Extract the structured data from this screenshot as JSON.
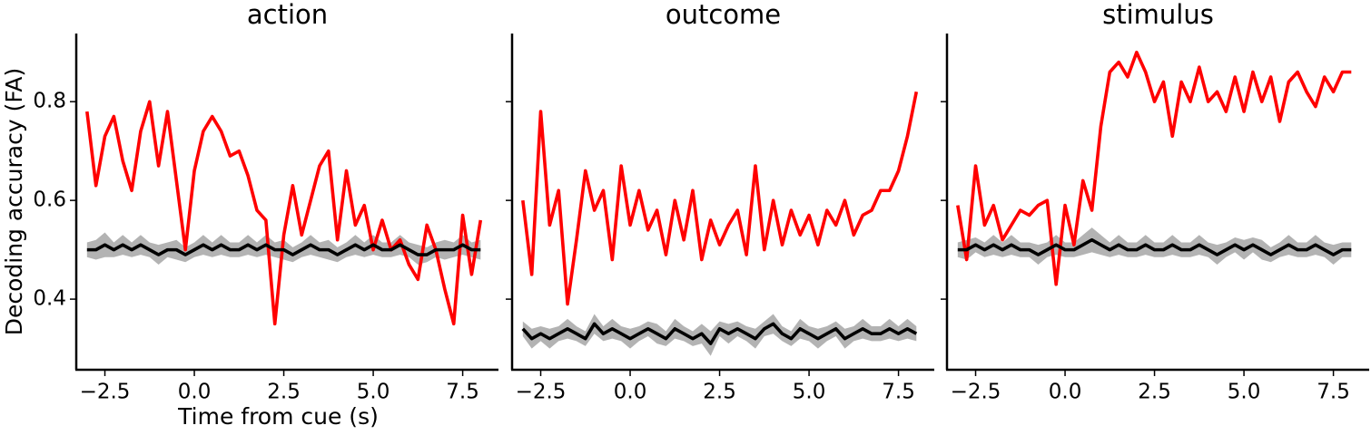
{
  "chart_data": [
    {
      "type": "line",
      "title": "action",
      "xlabel": "Time from cue (s)",
      "ylabel": "Decoding accuracy (FA)",
      "x": [
        -3,
        -2.75,
        -2.5,
        -2.25,
        -2,
        -1.75,
        -1.5,
        -1.25,
        -1,
        -0.75,
        -0.5,
        -0.25,
        0,
        0.25,
        0.5,
        0.75,
        1,
        1.25,
        1.5,
        1.75,
        2,
        2.25,
        2.5,
        2.75,
        3,
        3.25,
        3.5,
        3.75,
        4,
        4.25,
        4.5,
        4.75,
        5,
        5.25,
        5.5,
        5.75,
        6,
        6.25,
        6.5,
        6.75,
        7,
        7.25,
        7.5,
        7.75,
        8
      ],
      "xlim": [
        -3.3,
        8.5
      ],
      "xticks": [
        {
          "value": -2.5,
          "label": "−2.5"
        },
        {
          "value": 0,
          "label": "0.0"
        },
        2.5,
        {
          "value": 5,
          "label": "5.0"
        },
        7.5
      ],
      "ylim": [
        0.257,
        0.938
      ],
      "yticks": [
        0.4,
        0.6,
        0.8
      ],
      "series": [
        {
          "color": "#ff0000",
          "values": [
            0.78,
            0.63,
            0.73,
            0.77,
            0.68,
            0.62,
            0.74,
            0.8,
            0.67,
            0.78,
            0.64,
            0.5,
            0.66,
            0.74,
            0.77,
            0.74,
            0.69,
            0.7,
            0.65,
            0.58,
            0.56,
            0.35,
            0.53,
            0.63,
            0.53,
            0.6,
            0.67,
            0.7,
            0.52,
            0.66,
            0.55,
            0.59,
            0.5,
            0.56,
            0.5,
            0.52,
            0.47,
            0.44,
            0.55,
            0.5,
            0.42,
            0.35,
            0.57,
            0.45,
            0.56
          ]
        },
        {
          "color": "#000000",
          "band_color": "#b3b3b3",
          "values": [
            0.5,
            0.5,
            0.51,
            0.5,
            0.51,
            0.5,
            0.51,
            0.5,
            0.49,
            0.5,
            0.5,
            0.49,
            0.5,
            0.51,
            0.5,
            0.51,
            0.5,
            0.5,
            0.51,
            0.5,
            0.51,
            0.5,
            0.5,
            0.49,
            0.5,
            0.51,
            0.5,
            0.5,
            0.49,
            0.5,
            0.51,
            0.5,
            0.51,
            0.5,
            0.5,
            0.51,
            0.5,
            0.49,
            0.49,
            0.5,
            0.5,
            0.5,
            0.51,
            0.5,
            0.5
          ],
          "errors": [
            0.015,
            0.02,
            0.025,
            0.015,
            0.02,
            0.015,
            0.02,
            0.015,
            0.02,
            0.015,
            0.02,
            0.015,
            0.015,
            0.02,
            0.015,
            0.02,
            0.015,
            0.015,
            0.02,
            0.015,
            0.02,
            0.015,
            0.02,
            0.015,
            0.015,
            0.02,
            0.015,
            0.02,
            0.015,
            0.015,
            0.02,
            0.015,
            0.02,
            0.015,
            0.015,
            0.02,
            0.015,
            0.02,
            0.015,
            0.015,
            0.02,
            0.015,
            0.02,
            0.015,
            0.02
          ]
        }
      ]
    },
    {
      "type": "line",
      "title": "outcome",
      "sharey": true,
      "x": [
        -3,
        -2.75,
        -2.5,
        -2.25,
        -2,
        -1.75,
        -1.5,
        -1.25,
        -1,
        -0.75,
        -0.5,
        -0.25,
        0,
        0.25,
        0.5,
        0.75,
        1,
        1.25,
        1.5,
        1.75,
        2,
        2.25,
        2.5,
        2.75,
        3,
        3.25,
        3.5,
        3.75,
        4,
        4.25,
        4.5,
        4.75,
        5,
        5.25,
        5.5,
        5.75,
        6,
        6.25,
        6.5,
        6.75,
        7,
        7.25,
        7.5,
        7.75,
        8
      ],
      "xlim": [
        -3.3,
        8.5
      ],
      "xticks": [
        {
          "value": -2.5,
          "label": "−2.5"
        },
        {
          "value": 0,
          "label": "0.0"
        },
        2.5,
        {
          "value": 5,
          "label": "5.0"
        },
        7.5
      ],
      "ylim": [
        0.257,
        0.938
      ],
      "yticks": [
        0.4,
        0.6,
        0.8
      ],
      "series": [
        {
          "color": "#ff0000",
          "values": [
            0.6,
            0.45,
            0.78,
            0.55,
            0.62,
            0.39,
            0.52,
            0.66,
            0.58,
            0.62,
            0.48,
            0.67,
            0.55,
            0.62,
            0.54,
            0.58,
            0.49,
            0.6,
            0.52,
            0.62,
            0.48,
            0.56,
            0.51,
            0.55,
            0.58,
            0.49,
            0.67,
            0.5,
            0.6,
            0.51,
            0.58,
            0.53,
            0.57,
            0.51,
            0.58,
            0.55,
            0.6,
            0.53,
            0.57,
            0.58,
            0.62,
            0.62,
            0.66,
            0.73,
            0.82
          ]
        },
        {
          "color": "#000000",
          "band_color": "#b3b3b3",
          "values": [
            0.34,
            0.32,
            0.33,
            0.32,
            0.33,
            0.34,
            0.33,
            0.32,
            0.35,
            0.33,
            0.34,
            0.33,
            0.32,
            0.33,
            0.34,
            0.33,
            0.32,
            0.34,
            0.33,
            0.32,
            0.33,
            0.31,
            0.34,
            0.33,
            0.34,
            0.33,
            0.32,
            0.34,
            0.35,
            0.33,
            0.32,
            0.34,
            0.33,
            0.32,
            0.33,
            0.34,
            0.32,
            0.33,
            0.34,
            0.33,
            0.33,
            0.34,
            0.33,
            0.34,
            0.33
          ],
          "errors": [
            0.015,
            0.02,
            0.015,
            0.02,
            0.015,
            0.02,
            0.015,
            0.015,
            0.02,
            0.015,
            0.02,
            0.015,
            0.02,
            0.015,
            0.015,
            0.02,
            0.015,
            0.02,
            0.015,
            0.015,
            0.02,
            0.025,
            0.015,
            0.02,
            0.015,
            0.015,
            0.02,
            0.015,
            0.02,
            0.015,
            0.015,
            0.02,
            0.015,
            0.02,
            0.015,
            0.015,
            0.02,
            0.015,
            0.02,
            0.015,
            0.015,
            0.02,
            0.015,
            0.02,
            0.015
          ]
        }
      ]
    },
    {
      "type": "line",
      "title": "stimulus",
      "sharey": true,
      "x": [
        -3,
        -2.75,
        -2.5,
        -2.25,
        -2,
        -1.75,
        -1.5,
        -1.25,
        -1,
        -0.75,
        -0.5,
        -0.25,
        0,
        0.25,
        0.5,
        0.75,
        1,
        1.25,
        1.5,
        1.75,
        2,
        2.25,
        2.5,
        2.75,
        3,
        3.25,
        3.5,
        3.75,
        4,
        4.25,
        4.5,
        4.75,
        5,
        5.25,
        5.5,
        5.75,
        6,
        6.25,
        6.5,
        6.75,
        7,
        7.25,
        7.5,
        7.75,
        8
      ],
      "xlim": [
        -3.3,
        8.5
      ],
      "xticks": [
        {
          "value": -2.5,
          "label": "−2.5"
        },
        {
          "value": 0,
          "label": "0.0"
        },
        2.5,
        {
          "value": 5,
          "label": "5.0"
        },
        7.5
      ],
      "ylim": [
        0.257,
        0.938
      ],
      "yticks": [
        0.4,
        0.6,
        0.8
      ],
      "series": [
        {
          "color": "#ff0000",
          "values": [
            0.59,
            0.48,
            0.67,
            0.55,
            0.59,
            0.52,
            0.55,
            0.58,
            0.57,
            0.59,
            0.6,
            0.43,
            0.59,
            0.51,
            0.64,
            0.58,
            0.75,
            0.86,
            0.88,
            0.85,
            0.9,
            0.86,
            0.8,
            0.84,
            0.73,
            0.84,
            0.8,
            0.87,
            0.8,
            0.82,
            0.78,
            0.85,
            0.78,
            0.86,
            0.8,
            0.85,
            0.76,
            0.84,
            0.86,
            0.82,
            0.79,
            0.85,
            0.82,
            0.86,
            0.86
          ]
        },
        {
          "color": "#000000",
          "band_color": "#b3b3b3",
          "values": [
            0.5,
            0.5,
            0.51,
            0.5,
            0.51,
            0.5,
            0.51,
            0.5,
            0.5,
            0.49,
            0.5,
            0.51,
            0.5,
            0.5,
            0.51,
            0.52,
            0.51,
            0.5,
            0.51,
            0.5,
            0.5,
            0.51,
            0.5,
            0.5,
            0.51,
            0.5,
            0.5,
            0.51,
            0.5,
            0.49,
            0.5,
            0.51,
            0.5,
            0.51,
            0.5,
            0.49,
            0.5,
            0.51,
            0.5,
            0.5,
            0.51,
            0.5,
            0.49,
            0.5,
            0.5
          ],
          "errors": [
            0.015,
            0.02,
            0.015,
            0.015,
            0.02,
            0.015,
            0.02,
            0.015,
            0.015,
            0.02,
            0.015,
            0.02,
            0.015,
            0.015,
            0.02,
            0.025,
            0.02,
            0.015,
            0.02,
            0.015,
            0.015,
            0.02,
            0.015,
            0.015,
            0.02,
            0.015,
            0.015,
            0.02,
            0.015,
            0.02,
            0.015,
            0.015,
            0.02,
            0.015,
            0.02,
            0.015,
            0.015,
            0.02,
            0.015,
            0.015,
            0.02,
            0.015,
            0.02,
            0.015,
            0.015
          ]
        }
      ]
    }
  ]
}
